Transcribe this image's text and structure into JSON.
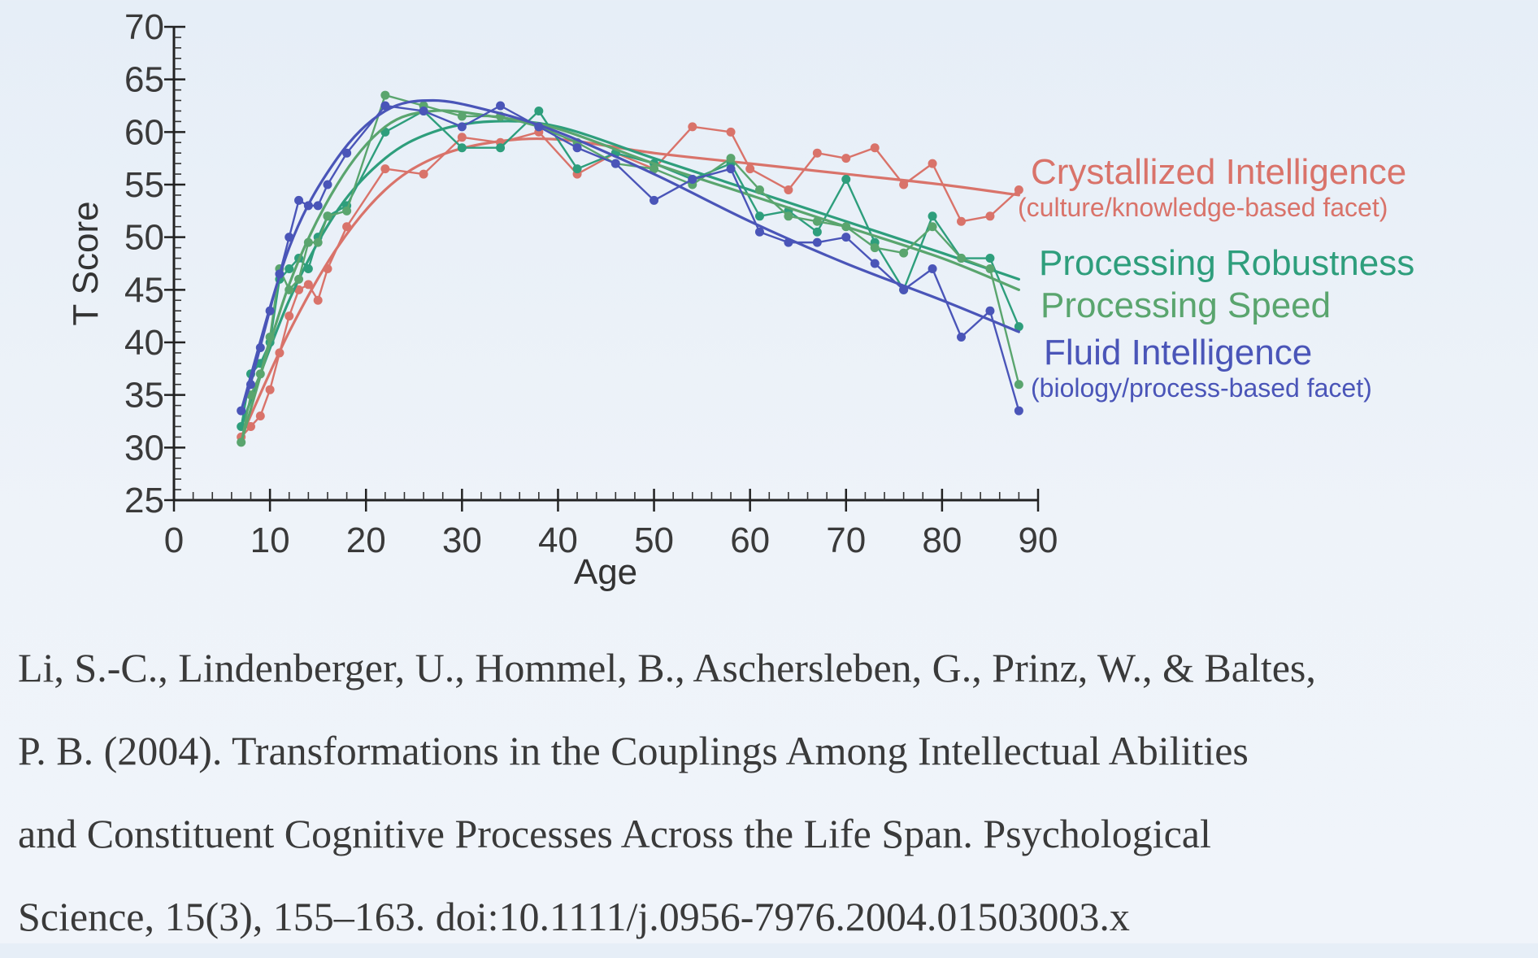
{
  "chart_data": {
    "type": "line",
    "xlabel": "Age",
    "ylabel": "T Score",
    "xlim": [
      0,
      90
    ],
    "ylim": [
      25,
      70
    ],
    "xticks": [
      0,
      10,
      20,
      30,
      40,
      50,
      60,
      70,
      80,
      90
    ],
    "yticks": [
      25,
      30,
      35,
      40,
      45,
      50,
      55,
      60,
      65,
      70
    ],
    "grid": false,
    "legend_position": "right",
    "series": [
      {
        "name": "Crystallized Intelligence",
        "subtitle": "(culture/knowledge-based facet)",
        "color": "#d9736a",
        "x": [
          7,
          8,
          9,
          10,
          11,
          12,
          13,
          14,
          15,
          16,
          18,
          22,
          26,
          30,
          34,
          38,
          42,
          46,
          50,
          54,
          58,
          60,
          64,
          67,
          70,
          73,
          76,
          79,
          82,
          85,
          88
        ],
        "y": [
          31,
          32,
          33,
          35.5,
          39,
          42.5,
          45,
          45.5,
          44,
          47,
          51,
          56.5,
          56,
          59.5,
          59,
          60,
          56,
          58,
          56.5,
          60.5,
          60,
          56.5,
          54.5,
          58,
          57.5,
          58.5,
          55,
          57,
          51.5,
          52,
          54.5
        ],
        "fit": [
          [
            7,
            31
          ],
          [
            12,
            41
          ],
          [
            17,
            49
          ],
          [
            22,
            54.5
          ],
          [
            27,
            57.5
          ],
          [
            33,
            59
          ],
          [
            40,
            59.3
          ],
          [
            50,
            58
          ],
          [
            60,
            57
          ],
          [
            70,
            56
          ],
          [
            80,
            55
          ],
          [
            88,
            54
          ]
        ]
      },
      {
        "name": "Processing Robustness",
        "color": "#2e9e7c",
        "x": [
          7,
          8,
          9,
          10,
          11,
          12,
          13,
          14,
          15,
          16,
          18,
          22,
          26,
          30,
          34,
          38,
          42,
          46,
          50,
          54,
          58,
          61,
          64,
          67,
          70,
          73,
          76,
          79,
          82,
          85,
          88
        ],
        "y": [
          32,
          37,
          38,
          40,
          46,
          47,
          48,
          47,
          50,
          52,
          53,
          60,
          62,
          58.5,
          58.5,
          62,
          56.5,
          58,
          57,
          55.5,
          57,
          52,
          52.5,
          50.5,
          55.5,
          49.5,
          45,
          52,
          48,
          48,
          41.5
        ],
        "fit": [
          [
            7,
            32
          ],
          [
            12,
            44
          ],
          [
            17,
            52.5
          ],
          [
            22,
            57.5
          ],
          [
            27,
            60
          ],
          [
            33,
            61
          ],
          [
            40,
            60.5
          ],
          [
            50,
            57.5
          ],
          [
            60,
            54.5
          ],
          [
            70,
            51.5
          ],
          [
            80,
            48.5
          ],
          [
            88,
            46
          ]
        ]
      },
      {
        "name": "Processing Speed",
        "color": "#5aa56e",
        "x": [
          7,
          8,
          9,
          10,
          11,
          12,
          13,
          14,
          15,
          16,
          18,
          22,
          26,
          30,
          34,
          38,
          42,
          46,
          50,
          54,
          58,
          61,
          64,
          67,
          70,
          73,
          76,
          79,
          82,
          85,
          88
        ],
        "y": [
          30.5,
          35,
          37,
          40.5,
          47,
          45,
          46,
          49.5,
          49.5,
          52,
          52.5,
          63.5,
          62.5,
          61.5,
          61.5,
          60.5,
          59,
          57,
          56.5,
          55,
          57.5,
          54.5,
          52,
          51.5,
          51,
          49,
          48.5,
          51,
          48,
          47,
          36
        ],
        "fit": [
          [
            7,
            30.5
          ],
          [
            12,
            45.5
          ],
          [
            17,
            55
          ],
          [
            22,
            60.5
          ],
          [
            27,
            62
          ],
          [
            33,
            61.5
          ],
          [
            40,
            60.3
          ],
          [
            50,
            57
          ],
          [
            60,
            54
          ],
          [
            70,
            51
          ],
          [
            80,
            48
          ],
          [
            88,
            45
          ]
        ]
      },
      {
        "name": "Fluid Intelligence",
        "subtitle": "(biology/process-based facet)",
        "color": "#4a55b8",
        "x": [
          7,
          8,
          9,
          10,
          11,
          12,
          13,
          14,
          15,
          16,
          18,
          22,
          26,
          30,
          34,
          38,
          42,
          46,
          50,
          54,
          58,
          61,
          64,
          67,
          70,
          73,
          76,
          79,
          82,
          85,
          88
        ],
        "y": [
          33.5,
          36,
          39.5,
          43,
          46.5,
          50,
          53.5,
          53,
          53,
          55,
          58,
          62.5,
          62,
          60.5,
          62.5,
          60.5,
          58.5,
          57,
          53.5,
          55.5,
          56.5,
          50.5,
          49.5,
          49.5,
          50,
          47.5,
          45,
          47,
          40.5,
          43,
          33.5
        ],
        "fit": [
          [
            7,
            33.5
          ],
          [
            12,
            49
          ],
          [
            17,
            57.5
          ],
          [
            22,
            62
          ],
          [
            27,
            63
          ],
          [
            33,
            62
          ],
          [
            40,
            60
          ],
          [
            50,
            56
          ],
          [
            60,
            51.5
          ],
          [
            70,
            47.5
          ],
          [
            80,
            44
          ],
          [
            88,
            41
          ]
        ]
      }
    ]
  },
  "citation": {
    "line1": "Li, S.-C., Lindenberger, U., Hommel, B., Aschersleben, G., Prinz, W., & Baltes,",
    "line2": "P. B. (2004). Transformations in the Couplings Among Intellectual Abilities",
    "line3": "and Constituent Cognitive Processes Across the Life Span. Psychological",
    "line4": "Science, 15(3), 155–163. doi:10.1111/j.0956-7976.2004.01503003.x"
  }
}
